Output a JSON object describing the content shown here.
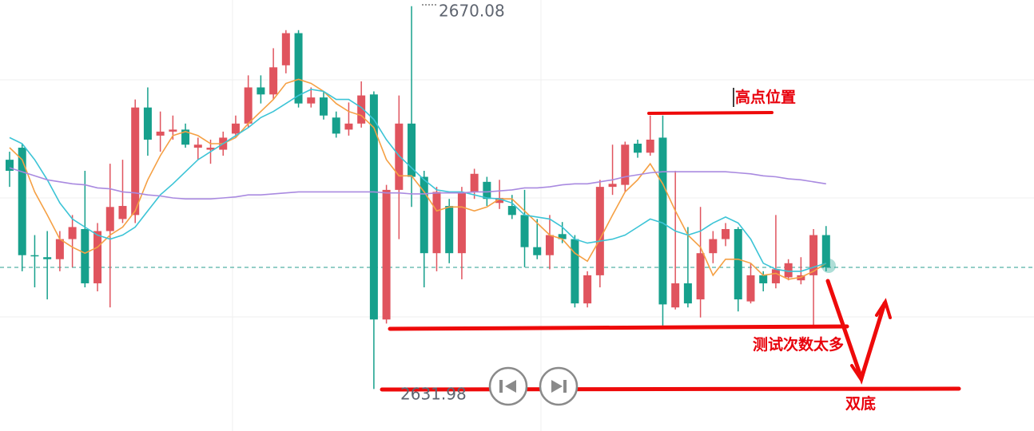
{
  "chart_data": {
    "type": "candlestick",
    "ylim": [
      2627.8,
      2670.7
    ],
    "up_color": "#e0545e",
    "down_color": "#16a08c",
    "open": [
      2654.8,
      2656.0,
      2645.3,
      2645.1,
      2644.9,
      2646.9,
      2647.9,
      2642.5,
      2647.7,
      2648.9,
      2649.3,
      2660.0,
      2657.2,
      2657.6,
      2657.8,
      2656.0,
      2655.8,
      2655.8,
      2657.4,
      2658.4,
      2662.0,
      2661.3,
      2664.2,
      2667.4,
      2660.4,
      2661.0,
      2659.0,
      2657.8,
      2658.4,
      2661.3,
      2638.9,
      2651.8,
      2658.4,
      2653.1,
      2645.5,
      2650.2,
      2645.5,
      2651.6,
      2652.6,
      2650.5,
      2650.2,
      2649.3,
      2646.1,
      2645.3,
      2647.4,
      2646.9,
      2640.5,
      2643.3,
      2652.1,
      2652.3,
      2656.4,
      2655.5,
      2657.0,
      2640.1,
      2642.5,
      2640.9,
      2645.5,
      2646.9,
      2647.9,
      2640.7,
      2643.3,
      2642.5,
      2643.1,
      2642.8,
      2643.3,
      2647.3
    ],
    "high": [
      2655.6,
      2656.4,
      2647.3,
      2647.7,
      2647.7,
      2649.3,
      2653.7,
      2648.5,
      2654.4,
      2654.8,
      2660.8,
      2662.0,
      2659.6,
      2659.2,
      2658.4,
      2657.0,
      2656.8,
      2657.6,
      2659.2,
      2663.2,
      2663.2,
      2665.9,
      2667.7,
      2667.7,
      2662.0,
      2661.6,
      2659.6,
      2660.5,
      2662.6,
      2661.6,
      2652.3,
      2661.2,
      2670.08,
      2653.7,
      2652.1,
      2650.9,
      2652.1,
      2653.9,
      2653.1,
      2652.8,
      2651.3,
      2651.8,
      2648.9,
      2649.3,
      2648.6,
      2647.3,
      2643.7,
      2652.8,
      2656.3,
      2656.6,
      2656.8,
      2659.2,
      2659.2,
      2653.7,
      2648.1,
      2650.1,
      2647.7,
      2648.5,
      2648.1,
      2644.5,
      2643.7,
      2649.3,
      2644.9,
      2645.1,
      2647.9,
      2648.2
    ],
    "low": [
      2652.1,
      2643.7,
      2642.1,
      2640.9,
      2643.7,
      2644.1,
      2642.1,
      2641.7,
      2640.1,
      2648.5,
      2648.5,
      2655.2,
      2655.6,
      2656.8,
      2656.0,
      2654.8,
      2654.4,
      2655.2,
      2657.0,
      2658.0,
      2660.4,
      2660.8,
      2663.4,
      2660.0,
      2660.0,
      2658.8,
      2657.0,
      2657.2,
      2658.0,
      2631.98,
      2638.5,
      2646.9,
      2650.1,
      2642.1,
      2643.7,
      2644.5,
      2642.9,
      2650.9,
      2650.2,
      2649.9,
      2648.9,
      2644.1,
      2644.9,
      2643.9,
      2646.5,
      2640.1,
      2640.1,
      2642.1,
      2651.3,
      2651.6,
      2655.0,
      2655.2,
      2638.3,
      2639.9,
      2640.1,
      2639.1,
      2644.5,
      2646.2,
      2639.7,
      2640.5,
      2641.7,
      2642.0,
      2642.8,
      2642.4,
      2638.3,
      2643.7
    ],
    "close": [
      2653.7,
      2645.3,
      2645.2,
      2644.9,
      2646.9,
      2648.1,
      2642.5,
      2647.7,
      2650.1,
      2650.2,
      2660.0,
      2656.8,
      2657.6,
      2657.8,
      2656.3,
      2656.3,
      2656.0,
      2657.0,
      2658.4,
      2662.0,
      2661.3,
      2664.0,
      2667.4,
      2660.4,
      2661.0,
      2659.2,
      2657.4,
      2658.4,
      2661.2,
      2638.9,
      2651.8,
      2658.4,
      2653.1,
      2645.5,
      2651.6,
      2645.5,
      2651.6,
      2653.4,
      2650.9,
      2651.0,
      2649.3,
      2646.1,
      2645.3,
      2647.3,
      2646.9,
      2640.5,
      2643.3,
      2652.1,
      2652.4,
      2656.3,
      2655.5,
      2656.8,
      2640.4,
      2642.5,
      2640.5,
      2645.5,
      2646.9,
      2647.9,
      2640.9,
      2643.3,
      2642.5,
      2643.9,
      2644.5,
      2643.3,
      2647.3,
      2644.1
    ],
    "series": [
      {
        "color": "#f5a044",
        "values": [
          2656.0,
          2654.8,
          2651.6,
          2649.3,
          2646.9,
          2646.1,
          2645.5,
          2646.1,
          2647.3,
          2648.1,
          2649.7,
          2652.8,
          2655.2,
          2657.2,
          2657.6,
          2657.2,
          2656.4,
          2656.4,
          2657.0,
          2658.4,
          2659.6,
          2660.8,
          2662.4,
          2662.8,
          2662.4,
          2661.6,
          2660.4,
          2659.6,
          2659.2,
          2658.0,
          2654.8,
          2653.2,
          2653.2,
          2651.6,
          2649.7,
          2650.1,
          2650.1,
          2649.7,
          2650.1,
          2650.9,
          2650.9,
          2649.7,
          2648.5,
          2647.3,
          2646.9,
          2645.5,
          2644.7,
          2646.9,
          2649.3,
          2651.6,
          2652.8,
          2654.4,
          2652.4,
          2649.7,
          2647.3,
          2646.1,
          2643.3,
          2644.9,
          2644.9,
          2644.5,
          2643.3,
          2643.5,
          2642.9,
          2643.1,
          2643.7,
          2644.5
        ]
      },
      {
        "color": "#3cc4d6",
        "values": [
          2657.0,
          2656.4,
          2654.8,
          2652.8,
          2650.5,
          2648.9,
          2648.1,
          2647.3,
          2646.9,
          2647.3,
          2648.1,
          2649.7,
          2651.3,
          2652.4,
          2653.6,
          2654.8,
          2655.6,
          2656.4,
          2657.2,
          2658.0,
          2659.0,
          2659.6,
          2660.4,
          2661.2,
          2661.8,
          2661.6,
          2660.8,
          2660.8,
          2660.0,
          2658.8,
          2656.8,
          2655.2,
          2654.0,
          2652.8,
          2651.8,
          2651.6,
          2651.6,
          2651.3,
          2651.0,
          2650.9,
          2650.5,
          2649.3,
          2649.1,
          2648.9,
          2648.1,
          2646.9,
          2646.5,
          2646.7,
          2646.9,
          2647.3,
          2648.1,
          2648.9,
          2648.5,
          2647.7,
          2647.3,
          2647.7,
          2648.5,
          2649.1,
          2648.5,
          2646.9,
          2644.5,
          2643.9,
          2643.7,
          2643.7,
          2644.1,
          2644.5
        ]
      },
      {
        "color": "#a98ae0",
        "values": [
          2654.0,
          2653.6,
          2653.2,
          2652.8,
          2652.6,
          2652.4,
          2652.3,
          2652.0,
          2651.9,
          2651.6,
          2651.5,
          2651.3,
          2651.2,
          2651.0,
          2650.9,
          2650.9,
          2650.9,
          2651.0,
          2651.1,
          2651.3,
          2651.3,
          2651.4,
          2651.5,
          2651.6,
          2651.6,
          2651.6,
          2651.6,
          2651.6,
          2651.6,
          2651.6,
          2651.5,
          2651.5,
          2651.4,
          2651.4,
          2651.5,
          2651.5,
          2651.5,
          2651.6,
          2651.6,
          2651.7,
          2651.8,
          2652.0,
          2652.0,
          2652.1,
          2652.3,
          2652.4,
          2652.4,
          2652.6,
          2652.8,
          2653.1,
          2653.3,
          2653.5,
          2653.6,
          2653.6,
          2653.6,
          2653.6,
          2653.6,
          2653.6,
          2653.5,
          2653.4,
          2653.2,
          2653.1,
          2652.9,
          2652.8,
          2652.6,
          2652.4
        ]
      }
    ],
    "annotations": [
      "高点位置",
      "测试次数太多",
      "双底"
    ]
  }
}
